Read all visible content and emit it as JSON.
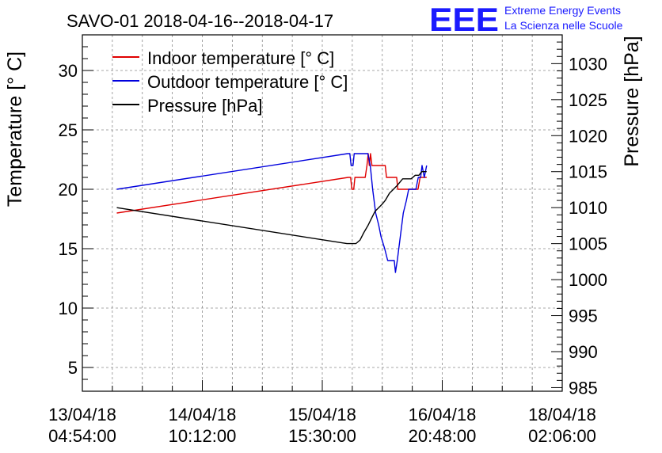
{
  "header": {
    "title": "SAVO-01 2018-04-16--2018-04-17",
    "logo_text": "EEE",
    "logo_line1": "Extreme Energy Events",
    "logo_line2": "La Scienza nelle Scuole",
    "logo_color": "#1a1aff"
  },
  "chart_data": {
    "type": "line",
    "title": "SAVO-01 2018-04-16--2018-04-17",
    "ylabel": "Temperature [° C]",
    "y2label": "Pressure [hPa]",
    "x_tick_labels": [
      {
        "date": "13/04/18",
        "time": "04:54:00",
        "index": 0
      },
      {
        "date": "14/04/18",
        "time": "10:12:00",
        "index": 1
      },
      {
        "date": "15/04/18",
        "time": "15:30:00",
        "index": 2
      },
      {
        "date": "16/04/18",
        "time": "20:48:00",
        "index": 3
      },
      {
        "date": "18/04/18",
        "time": "02:06:00",
        "index": 4
      }
    ],
    "xlim": [
      0,
      4
    ],
    "ylim": [
      3,
      33
    ],
    "y2lim": [
      984.5,
      1034
    ],
    "y_ticks": [
      5,
      10,
      15,
      20,
      25,
      30
    ],
    "y2_ticks": [
      985,
      990,
      995,
      1000,
      1005,
      1010,
      1015,
      1020,
      1025,
      1030
    ],
    "grid": true,
    "legend_position": "top-left",
    "series": [
      {
        "name": "Indoor temperature [° C]",
        "axis": "left",
        "color": "#e00000",
        "points": [
          [
            0.287,
            18
          ],
          [
            2.216,
            21
          ],
          [
            2.236,
            21
          ],
          [
            2.246,
            20
          ],
          [
            2.262,
            20
          ],
          [
            2.272,
            21
          ],
          [
            2.358,
            21
          ],
          [
            2.372,
            22
          ],
          [
            2.383,
            23
          ],
          [
            2.392,
            22
          ],
          [
            2.402,
            23
          ],
          [
            2.414,
            22
          ],
          [
            2.525,
            22
          ],
          [
            2.535,
            21
          ],
          [
            2.62,
            21
          ],
          [
            2.63,
            20
          ],
          [
            2.798,
            20
          ],
          [
            2.815,
            21
          ],
          [
            2.87,
            21
          ]
        ]
      },
      {
        "name": "Outdoor temperature [° C]",
        "axis": "left",
        "color": "#0000dd",
        "points": [
          [
            0.287,
            20
          ],
          [
            2.21,
            23
          ],
          [
            2.23,
            23
          ],
          [
            2.24,
            22
          ],
          [
            2.256,
            22
          ],
          [
            2.266,
            23
          ],
          [
            2.38,
            23
          ],
          [
            2.4,
            22
          ],
          [
            2.42,
            20
          ],
          [
            2.445,
            18
          ],
          [
            2.47,
            17
          ],
          [
            2.49,
            16
          ],
          [
            2.52,
            15
          ],
          [
            2.545,
            14
          ],
          [
            2.6,
            14
          ],
          [
            2.61,
            13
          ],
          [
            2.625,
            14
          ],
          [
            2.65,
            16
          ],
          [
            2.675,
            18
          ],
          [
            2.7,
            19
          ],
          [
            2.72,
            20
          ],
          [
            2.78,
            20
          ],
          [
            2.8,
            21
          ],
          [
            2.82,
            21
          ],
          [
            2.832,
            22
          ],
          [
            2.85,
            21
          ],
          [
            2.87,
            22
          ]
        ]
      },
      {
        "name": "Pressure [hPa]",
        "axis": "right",
        "color": "#000000",
        "points": [
          [
            0.287,
            1010
          ],
          [
            2.205,
            1005
          ],
          [
            2.28,
            1005
          ],
          [
            2.315,
            1005.5
          ],
          [
            2.345,
            1006.5
          ],
          [
            2.38,
            1007.5
          ],
          [
            2.41,
            1008.5
          ],
          [
            2.44,
            1009.5
          ],
          [
            2.47,
            1010
          ],
          [
            2.5,
            1010.5
          ],
          [
            2.525,
            1011
          ],
          [
            2.56,
            1012
          ],
          [
            2.59,
            1012.5
          ],
          [
            2.62,
            1013
          ],
          [
            2.645,
            1013.5
          ],
          [
            2.67,
            1014
          ],
          [
            2.71,
            1014
          ],
          [
            2.74,
            1014
          ],
          [
            2.775,
            1014.5
          ],
          [
            2.805,
            1014.5
          ],
          [
            2.83,
            1015
          ],
          [
            2.87,
            1015
          ]
        ]
      }
    ]
  }
}
